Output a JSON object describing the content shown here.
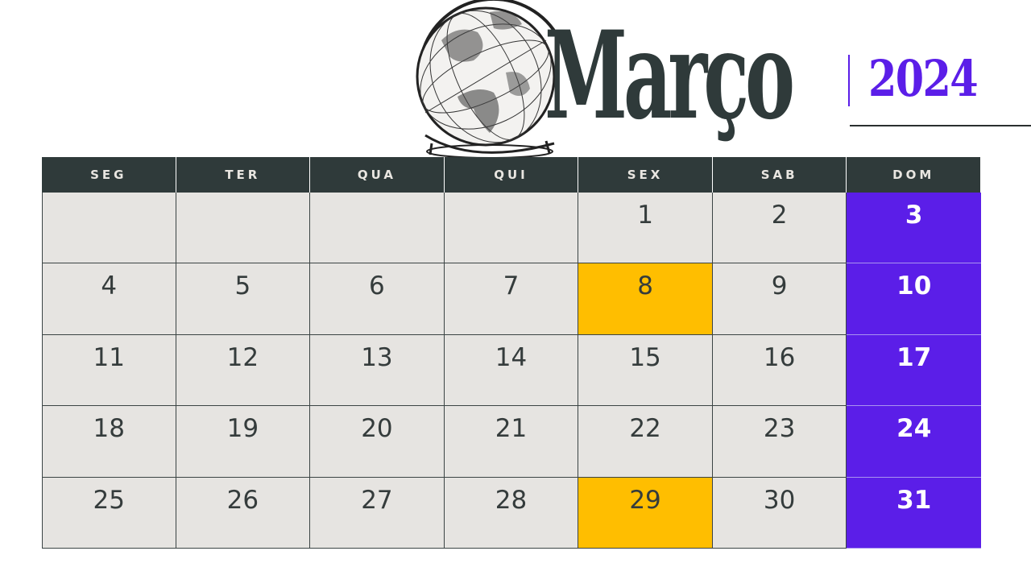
{
  "header": {
    "month": "Março",
    "year": "2024"
  },
  "colors": {
    "accent": "#5b1ee8",
    "highlight": "#ffbe00",
    "header_dark": "#2f3a3a",
    "cell_bg": "#e6e4e1"
  },
  "icons": {
    "globe": "globe-illustration"
  },
  "weekdays": [
    "SEG",
    "TER",
    "QUA",
    "QUI",
    "SEX",
    "SAB",
    "DOM"
  ],
  "weeks": [
    [
      "",
      "",
      "",
      "",
      "1",
      "2",
      "3"
    ],
    [
      "4",
      "5",
      "6",
      "7",
      "8",
      "9",
      "10"
    ],
    [
      "11",
      "12",
      "13",
      "14",
      "15",
      "16",
      "17"
    ],
    [
      "18",
      "19",
      "20",
      "21",
      "22",
      "23",
      "24"
    ],
    [
      "25",
      "26",
      "27",
      "28",
      "29",
      "30",
      "31"
    ]
  ],
  "highlighted_days": [
    "8",
    "29"
  ]
}
